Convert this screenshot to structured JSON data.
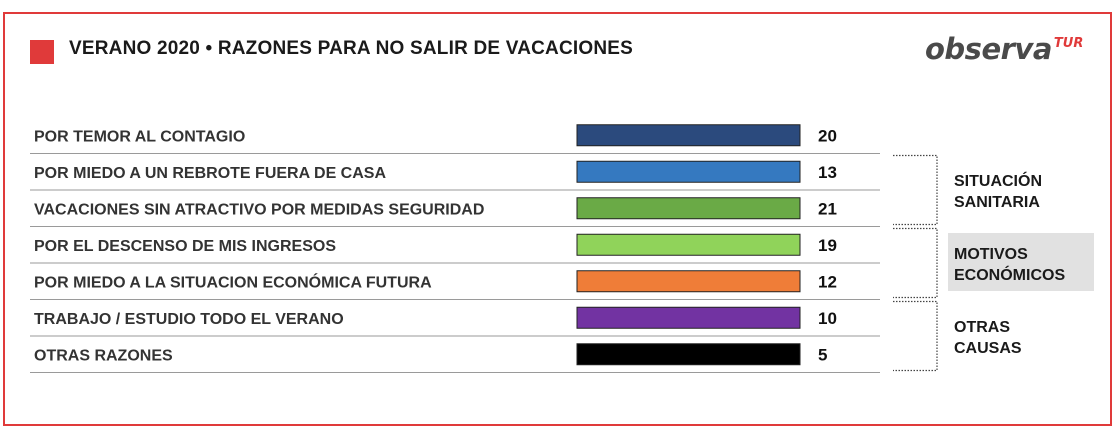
{
  "header": {
    "title": "VERANO 2020 • RAZONES PARA NO SALIR DE VACACIONES",
    "logo_main": "observa",
    "logo_sup": "TUR"
  },
  "colors": {
    "frame": "#e03a3a",
    "title_square": "#e03a3a",
    "group_highlight_bg": "#e1e1e1"
  },
  "chart_data": {
    "type": "bar",
    "orientation": "horizontal",
    "categories": [
      "POR TEMOR AL CONTAGIO",
      "POR MIEDO A UN REBROTE FUERA DE CASA",
      "VACACIONES SIN ATRACTIVO POR MEDIDAS SEGURIDAD",
      "POR EL DESCENSO DE MIS INGRESOS",
      "POR MIEDO A LA SITUACION ECONÓMICA FUTURA",
      "TRABAJO / ESTUDIO TODO EL VERANO",
      "OTRAS RAZONES"
    ],
    "values": [
      20,
      13,
      21,
      19,
      12,
      10,
      5
    ],
    "value_labels": [
      "20",
      "13",
      "21",
      "19",
      "12",
      "10",
      "5"
    ],
    "bar_colors": [
      "#2b4a7d",
      "#3579c0",
      "#6aaa46",
      "#90d35a",
      "#ef7d38",
      "#7233a2",
      "#000000"
    ],
    "groups": [
      {
        "label_lines": [
          "SITUACIÓN",
          "SANITARIA"
        ],
        "start": 1,
        "end": 2,
        "highlight": false
      },
      {
        "label_lines": [
          "MOTIVOS",
          "ECONÓMICOS"
        ],
        "start": 3,
        "end": 4,
        "highlight": true
      },
      {
        "label_lines": [
          "OTRAS",
          "CAUSAS"
        ],
        "start": 5,
        "end": 6,
        "highlight": false
      }
    ],
    "grid": false
  }
}
